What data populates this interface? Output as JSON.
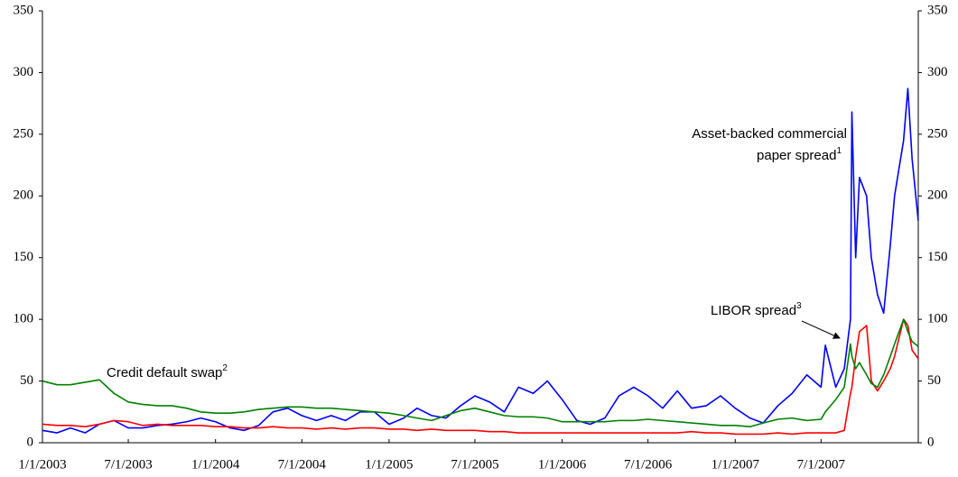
{
  "chart_data": {
    "type": "line",
    "x": [
      "1/1/2003",
      "2/1/2003",
      "3/1/2003",
      "4/1/2003",
      "5/1/2003",
      "6/1/2003",
      "7/1/2003",
      "8/1/2003",
      "9/1/2003",
      "10/1/2003",
      "11/1/2003",
      "12/1/2003",
      "1/1/2004",
      "2/1/2004",
      "3/1/2004",
      "4/1/2004",
      "5/1/2004",
      "6/1/2004",
      "7/1/2004",
      "8/1/2004",
      "9/1/2004",
      "10/1/2004",
      "11/1/2004",
      "12/1/2004",
      "1/1/2005",
      "2/1/2005",
      "3/1/2005",
      "4/1/2005",
      "5/1/2005",
      "6/1/2005",
      "7/1/2005",
      "8/1/2005",
      "9/1/2005",
      "10/1/2005",
      "11/1/2005",
      "12/1/2005",
      "1/1/2006",
      "2/1/2006",
      "3/1/2006",
      "4/1/2006",
      "5/1/2006",
      "6/1/2006",
      "7/1/2006",
      "8/1/2006",
      "9/1/2006",
      "10/1/2006",
      "11/1/2006",
      "12/1/2006",
      "1/1/2007",
      "2/1/2007",
      "3/1/2007",
      "4/1/2007",
      "5/1/2007",
      "6/1/2007",
      "7/1/2007",
      "7/10/2007",
      "8/1/2007",
      "8/19/2007",
      "9/1/2007",
      "9/4/2007",
      "9/12/2007",
      "9/20/2007",
      "10/5/2007",
      "10/15/2007",
      "10/28/2007",
      "11/10/2007",
      "11/24/2007",
      "12/3/2007",
      "12/22/2007",
      "12/31/2007",
      "1/9/2008",
      "1/22/2008"
    ],
    "series": [
      {
        "color": "#0000ff",
        "values": [
          10,
          8,
          12,
          8,
          15,
          18,
          12,
          12,
          14,
          15,
          17,
          20,
          17,
          12,
          10,
          14,
          25,
          28,
          22,
          18,
          22,
          18,
          25,
          25,
          15,
          20,
          28,
          22,
          20,
          30,
          38,
          33,
          25,
          45,
          40,
          50,
          35,
          18,
          15,
          20,
          38,
          45,
          38,
          28,
          42,
          28,
          30,
          38,
          28,
          20,
          16,
          30,
          40,
          55,
          45,
          79,
          45,
          60,
          100,
          268,
          150,
          215,
          200,
          150,
          120,
          105,
          160,
          200,
          245,
          287,
          230,
          180
        ]
      },
      {
        "color": "#ff0000",
        "values": [
          15,
          14,
          14,
          13,
          15,
          18,
          17,
          14,
          15,
          14,
          14,
          14,
          13,
          13,
          12,
          12,
          13,
          12,
          12,
          11,
          12,
          11,
          12,
          12,
          11,
          11,
          10,
          11,
          10,
          10,
          10,
          9,
          9,
          8,
          8,
          8,
          8,
          8,
          8,
          8,
          8,
          8,
          8,
          8,
          8,
          9,
          8,
          8,
          7,
          7,
          7,
          8,
          7,
          8,
          8,
          8,
          8,
          10,
          40,
          45,
          70,
          90,
          95,
          50,
          42,
          50,
          60,
          70,
          100,
          95,
          75,
          68
        ]
      },
      {
        "color": "#008000",
        "values": [
          50,
          47,
          47,
          49,
          51,
          40,
          33,
          31,
          30,
          30,
          28,
          25,
          24,
          24,
          25,
          27,
          28,
          29,
          29,
          28,
          28,
          27,
          26,
          25,
          24,
          22,
          20,
          18,
          22,
          26,
          28,
          25,
          22,
          21,
          21,
          20,
          17,
          17,
          17,
          17,
          18,
          18,
          19,
          18,
          17,
          16,
          15,
          14,
          14,
          13,
          16,
          19,
          20,
          18,
          19,
          25,
          35,
          45,
          80,
          70,
          60,
          65,
          55,
          48,
          45,
          55,
          70,
          80,
          100,
          90,
          82,
          78
        ]
      }
    ],
    "xlim": [
      "1/1/2003",
      "1/22/2008"
    ],
    "xticks": [
      "1/1/2003",
      "7/1/2003",
      "1/1/2004",
      "7/1/2004",
      "1/1/2005",
      "7/1/2005",
      "1/1/2006",
      "7/1/2006",
      "1/1/2007",
      "7/1/2007"
    ],
    "ylim": [
      0,
      350
    ],
    "yticks": [
      0,
      50,
      100,
      150,
      200,
      250,
      300,
      350
    ],
    "y2lim": [
      0,
      350
    ],
    "y2ticks": [
      0,
      50,
      100,
      150,
      200,
      250,
      300,
      350
    ],
    "annotations": [
      {
        "lines": [
          "Asset-backed commercial",
          "paper spread"
        ],
        "sup": "1"
      },
      {
        "lines": [
          "Credit default swap"
        ],
        "sup": "2"
      },
      {
        "lines": [
          "LIBOR spread"
        ],
        "sup": "3"
      }
    ]
  }
}
